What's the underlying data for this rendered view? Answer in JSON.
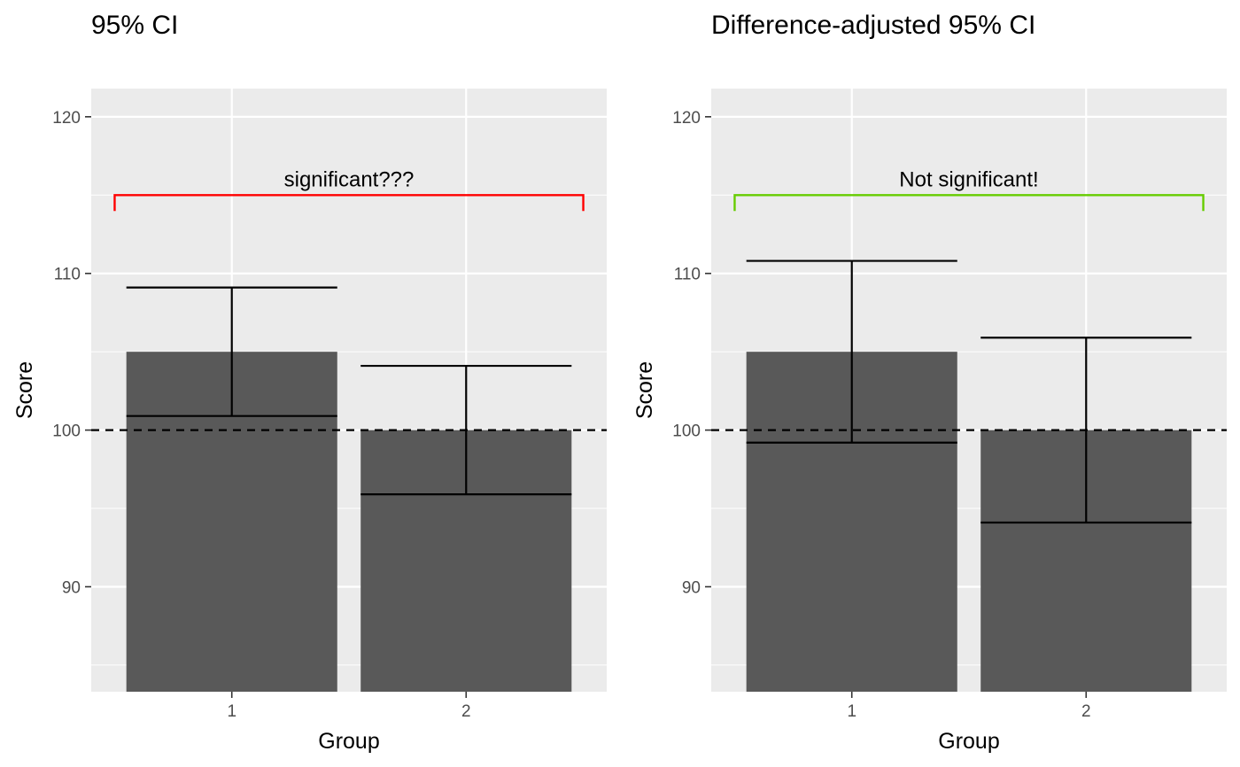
{
  "chart_data": [
    {
      "type": "bar",
      "title": "95% CI",
      "xlabel": "Group",
      "ylabel": "Score",
      "categories": [
        "1",
        "2"
      ],
      "values": [
        105,
        100
      ],
      "error_bars": [
        {
          "lower": 100.9,
          "upper": 109.1
        },
        {
          "lower": 95.9,
          "upper": 104.1
        }
      ],
      "ylim": [
        83.3,
        121.8
      ],
      "yticks": [
        90,
        100,
        110,
        120
      ],
      "reference_line": 100,
      "annotation": {
        "text": "significant???",
        "y": 115,
        "color": "#ff0000"
      },
      "bar_color": "#595959",
      "panel_background": "#ebebeb",
      "grid": true
    },
    {
      "type": "bar",
      "title": "Difference-adjusted 95% CI",
      "xlabel": "Group",
      "ylabel": "Score",
      "categories": [
        "1",
        "2"
      ],
      "values": [
        105,
        100
      ],
      "error_bars": [
        {
          "lower": 99.2,
          "upper": 110.8
        },
        {
          "lower": 94.1,
          "upper": 105.9
        }
      ],
      "ylim": [
        83.3,
        121.8
      ],
      "yticks": [
        90,
        100,
        110,
        120
      ],
      "reference_line": 100,
      "annotation": {
        "text": "Not significant!",
        "y": 115,
        "color": "#66cc00"
      },
      "bar_color": "#595959",
      "panel_background": "#ebebeb",
      "grid": true
    }
  ]
}
